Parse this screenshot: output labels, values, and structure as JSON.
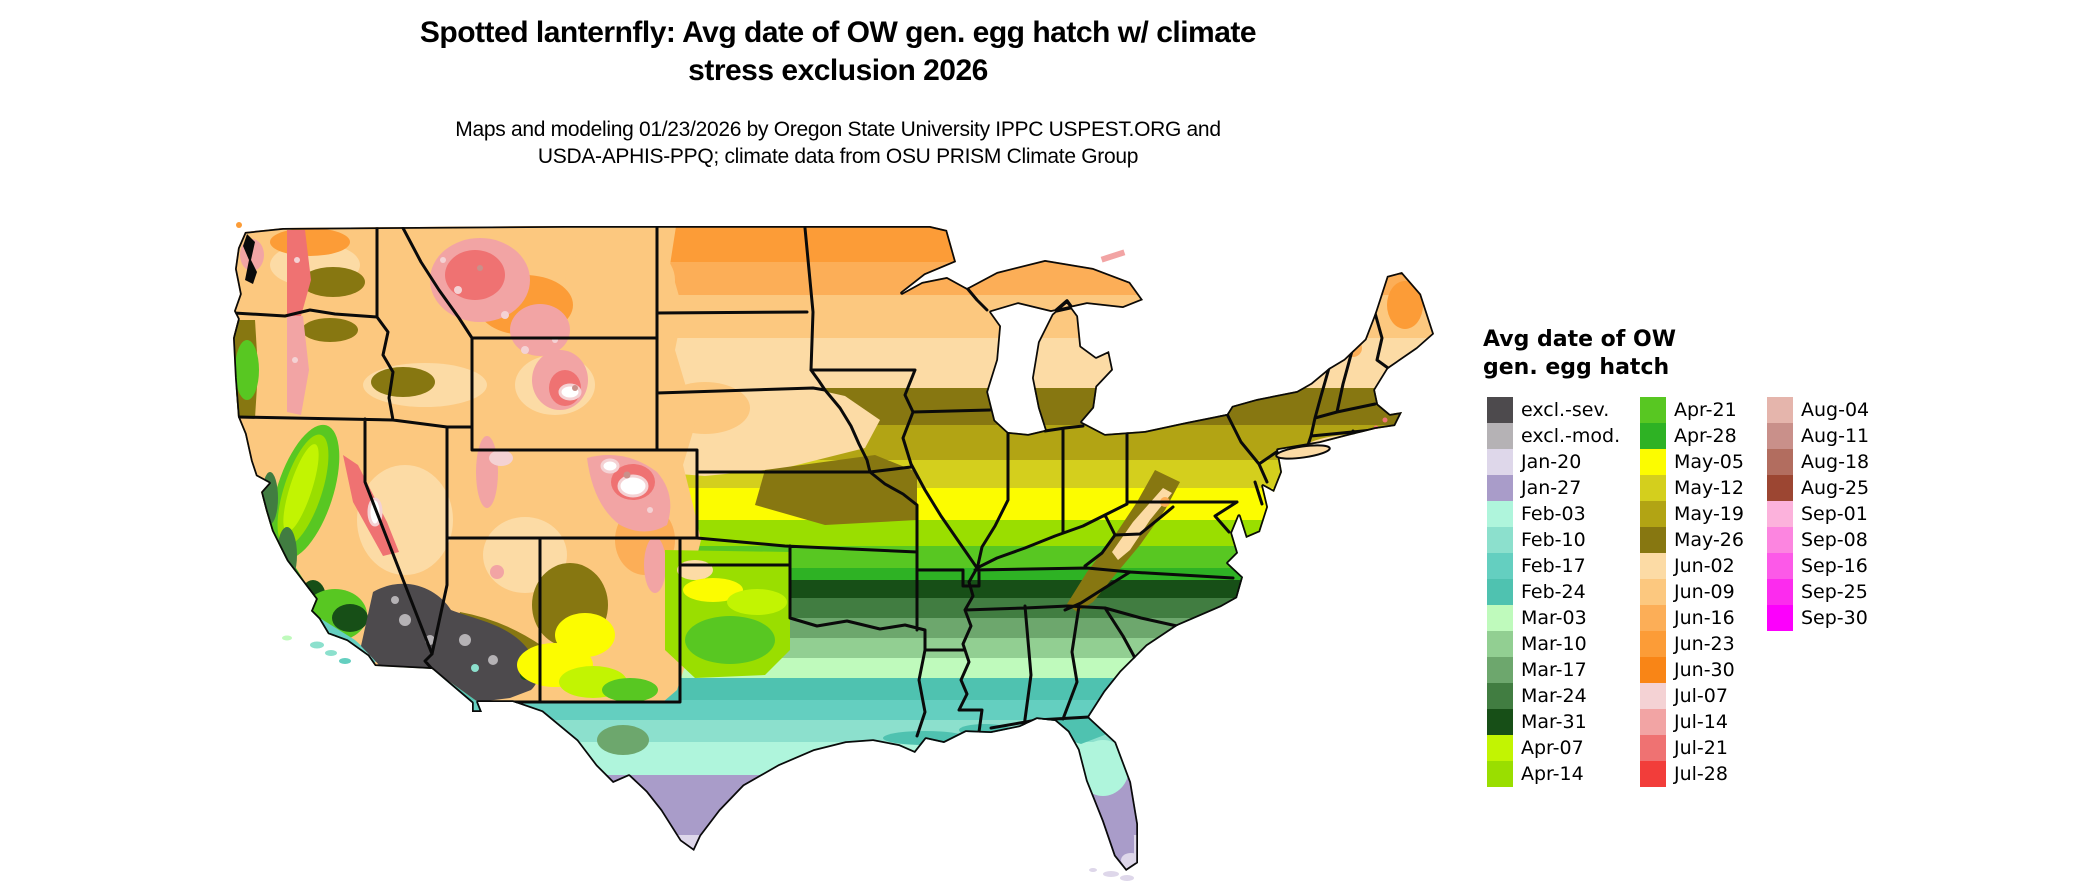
{
  "header": {
    "title_line1": "Spotted lanternfly: Avg date of OW gen. egg hatch w/ climate",
    "title_line2": "stress exclusion 2026",
    "subtitle_line1": "Maps and modeling 01/23/2026 by Oregon State University IPPC USPEST.ORG and",
    "subtitle_line2": "USDA-APHIS-PPQ; climate data from OSU PRISM Climate Group"
  },
  "map": {
    "region": "Contiguous United States (lower 48 states)",
    "kind": "choropleth raster map with state boundaries"
  },
  "legend": {
    "title_line1": "Avg date of OW",
    "title_line2": "gen. egg hatch",
    "columns": [
      [
        {
          "label": "excl.-sev.",
          "color": "#4d4a4d"
        },
        {
          "label": "excl.-mod.",
          "color": "#b5b2b5"
        },
        {
          "label": "Jan-20",
          "color": "#ded7ea"
        },
        {
          "label": "Jan-27",
          "color": "#a99cc9"
        },
        {
          "label": "Feb-03",
          "color": "#aff5dc"
        },
        {
          "label": "Feb-10",
          "color": "#8ce0cd"
        },
        {
          "label": "Feb-17",
          "color": "#64cfc0"
        },
        {
          "label": "Feb-24",
          "color": "#4fc2b0"
        },
        {
          "label": "Mar-03",
          "color": "#bffabc"
        },
        {
          "label": "Mar-10",
          "color": "#92cf92"
        },
        {
          "label": "Mar-17",
          "color": "#6da76d"
        },
        {
          "label": "Mar-24",
          "color": "#417d41"
        },
        {
          "label": "Mar-31",
          "color": "#174f17"
        },
        {
          "label": "Apr-07",
          "color": "#c2f402"
        },
        {
          "label": "Apr-14",
          "color": "#9ade00"
        }
      ],
      [
        {
          "label": "Apr-21",
          "color": "#58c722"
        },
        {
          "label": "Apr-28",
          "color": "#2eb224"
        },
        {
          "label": "May-05",
          "color": "#fcfc00"
        },
        {
          "label": "May-12",
          "color": "#d4cf1d"
        },
        {
          "label": "May-19",
          "color": "#b2a414"
        },
        {
          "label": "May-26",
          "color": "#877711"
        },
        {
          "label": "Jun-02",
          "color": "#fcdba5"
        },
        {
          "label": "Jun-09",
          "color": "#fcc87f"
        },
        {
          "label": "Jun-16",
          "color": "#fcae57"
        },
        {
          "label": "Jun-23",
          "color": "#fc9c37"
        },
        {
          "label": "Jun-30",
          "color": "#f98516"
        },
        {
          "label": "Jul-07",
          "color": "#f4d2d4"
        },
        {
          "label": "Jul-14",
          "color": "#f2a4a4"
        },
        {
          "label": "Jul-21",
          "color": "#ef7272"
        },
        {
          "label": "Jul-28",
          "color": "#f23d3a"
        }
      ],
      [
        {
          "label": "Aug-04",
          "color": "#e5b5ac"
        },
        {
          "label": "Aug-11",
          "color": "#c9908a"
        },
        {
          "label": "Aug-18",
          "color": "#b26d5f"
        },
        {
          "label": "Aug-25",
          "color": "#9c4632"
        },
        {
          "label": "Sep-01",
          "color": "#fcb2dc"
        },
        {
          "label": "Sep-08",
          "color": "#fc85e0"
        },
        {
          "label": "Sep-16",
          "color": "#fc59e8"
        },
        {
          "label": "Sep-25",
          "color": "#fc2bee"
        },
        {
          "label": "Sep-30",
          "color": "#fc00fc"
        }
      ]
    ]
  }
}
